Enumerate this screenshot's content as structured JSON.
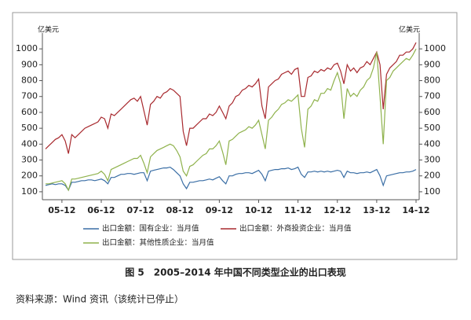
{
  "chart_data": {
    "type": "line",
    "y_unit": "亿美元",
    "y2_unit": "亿美元",
    "caption": "图 5　2005–2014 年中国不同类型企业的出口表现",
    "source": "资料来源：Wind 资讯（该统计已停止）",
    "categories": [
      null,
      null,
      null,
      null,
      null,
      "05-12",
      null,
      null,
      null,
      null,
      null,
      null,
      null,
      null,
      null,
      null,
      null,
      "06-12",
      null,
      null,
      null,
      null,
      null,
      null,
      null,
      null,
      null,
      null,
      null,
      "07-12",
      null,
      null,
      null,
      null,
      null,
      null,
      null,
      null,
      null,
      null,
      null,
      "08-12",
      null,
      null,
      null,
      null,
      null,
      null,
      null,
      null,
      null,
      null,
      null,
      "09-12",
      null,
      null,
      null,
      null,
      null,
      null,
      null,
      null,
      null,
      null,
      null,
      "10-12",
      null,
      null,
      null,
      null,
      null,
      null,
      null,
      null,
      null,
      null,
      null,
      "11-12",
      null,
      null,
      null,
      null,
      null,
      null,
      null,
      null,
      null,
      null,
      null,
      "12-12",
      null,
      null,
      null,
      null,
      null,
      null,
      null,
      null,
      null,
      null,
      null,
      "13-12",
      null,
      null,
      null,
      null,
      null,
      null,
      null,
      null,
      null,
      null,
      null,
      "14-12"
    ],
    "series": [
      {
        "name": "出口金额：国有企业：当月值",
        "color": "#3a6ea5",
        "values": [
          140,
          145,
          150,
          145,
          150,
          150,
          140,
          110,
          160,
          160,
          165,
          170,
          170,
          175,
          175,
          170,
          175,
          180,
          170,
          150,
          190,
          190,
          200,
          210,
          210,
          215,
          215,
          210,
          215,
          220,
          220,
          170,
          230,
          235,
          240,
          245,
          250,
          250,
          255,
          240,
          220,
          200,
          150,
          120,
          160,
          160,
          165,
          170,
          170,
          175,
          180,
          175,
          185,
          195,
          170,
          150,
          200,
          200,
          210,
          215,
          215,
          220,
          220,
          215,
          225,
          235,
          210,
          170,
          230,
          235,
          240,
          240,
          245,
          245,
          250,
          240,
          245,
          255,
          210,
          190,
          225,
          225,
          230,
          225,
          230,
          225,
          230,
          225,
          230,
          235,
          230,
          190,
          230,
          220,
          220,
          215,
          220,
          220,
          225,
          220,
          230,
          240,
          200,
          140,
          200,
          205,
          210,
          215,
          220,
          220,
          225,
          225,
          230,
          240
        ]
      },
      {
        "name": "出口金额：外商投资企业：当月值",
        "color": "#a8292e",
        "values": [
          370,
          390,
          410,
          430,
          440,
          460,
          420,
          340,
          460,
          440,
          460,
          480,
          500,
          510,
          520,
          530,
          540,
          570,
          560,
          500,
          590,
          580,
          600,
          620,
          640,
          660,
          680,
          690,
          670,
          700,
          610,
          520,
          650,
          670,
          700,
          690,
          720,
          730,
          750,
          740,
          720,
          700,
          480,
          390,
          500,
          500,
          520,
          540,
          560,
          560,
          590,
          580,
          600,
          640,
          600,
          560,
          640,
          660,
          700,
          710,
          740,
          750,
          770,
          760,
          780,
          810,
          640,
          560,
          760,
          780,
          800,
          810,
          840,
          850,
          860,
          840,
          870,
          880,
          700,
          700,
          820,
          830,
          860,
          850,
          870,
          860,
          880,
          870,
          900,
          910,
          860,
          780,
          900,
          860,
          880,
          850,
          880,
          890,
          920,
          900,
          940,
          980,
          900,
          620,
          840,
          880,
          900,
          920,
          960,
          960,
          980,
          980,
          1000,
          1040
        ]
      },
      {
        "name": "出口金额：其他性质企业：当月值",
        "color": "#8fb24c",
        "values": [
          150,
          150,
          155,
          160,
          165,
          170,
          150,
          110,
          180,
          180,
          185,
          190,
          195,
          200,
          205,
          210,
          215,
          230,
          210,
          170,
          240,
          250,
          260,
          270,
          280,
          290,
          300,
          310,
          310,
          330,
          280,
          220,
          320,
          340,
          360,
          370,
          380,
          390,
          400,
          390,
          360,
          320,
          230,
          200,
          260,
          270,
          290,
          310,
          330,
          340,
          370,
          370,
          390,
          420,
          350,
          270,
          420,
          430,
          450,
          470,
          480,
          490,
          510,
          500,
          520,
          550,
          460,
          370,
          550,
          570,
          600,
          620,
          650,
          660,
          680,
          670,
          690,
          710,
          500,
          380,
          620,
          640,
          680,
          670,
          720,
          720,
          750,
          740,
          800,
          850,
          780,
          560,
          750,
          700,
          720,
          700,
          740,
          760,
          800,
          820,
          880,
          980,
          700,
          400,
          800,
          820,
          860,
          880,
          900,
          920,
          940,
          930,
          960,
          1000
        ]
      }
    ],
    "ylim": [
      50,
      1080
    ],
    "yticks": [
      100,
      200,
      300,
      400,
      500,
      600,
      700,
      800,
      900,
      1000
    ],
    "y2lim": [
      50,
      1080
    ],
    "y2ticks": [
      100,
      200,
      300,
      400,
      500,
      600,
      700,
      800,
      900,
      1000
    ]
  }
}
